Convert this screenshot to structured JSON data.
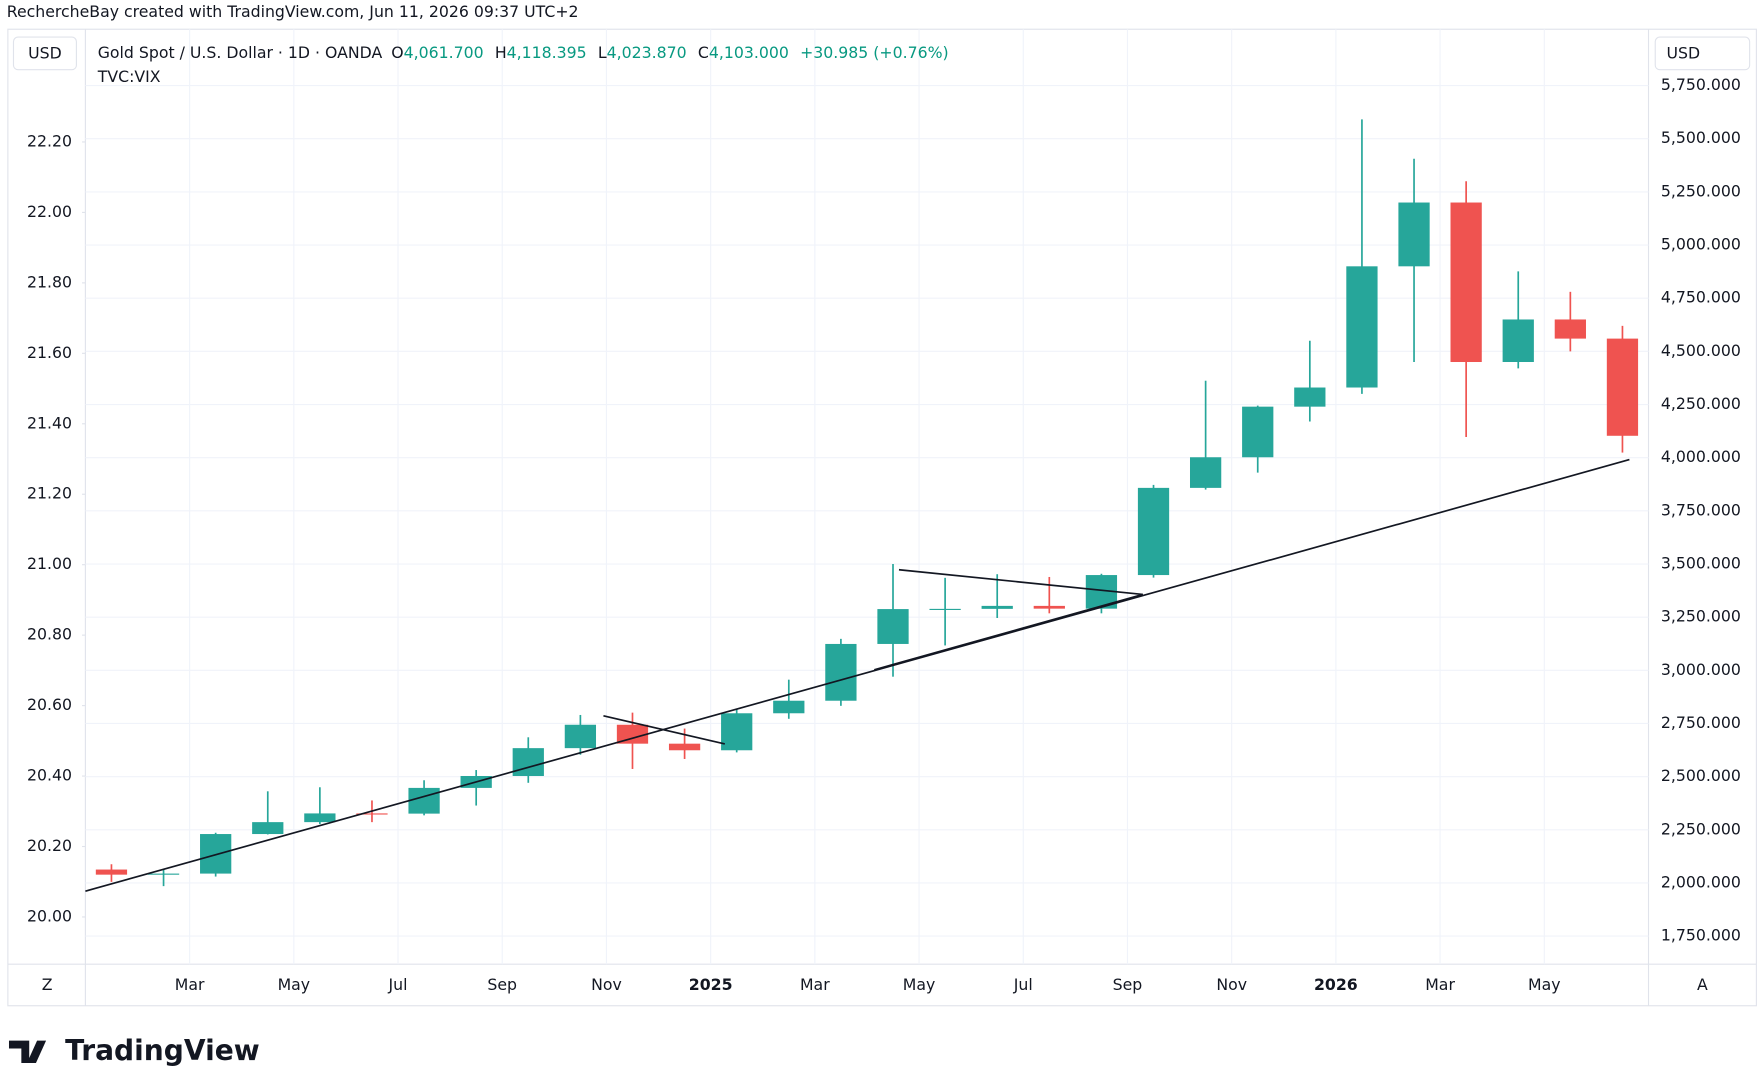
{
  "header": {
    "credit": "RechercheBay created with TradingView.com, Jun 11, 2026 09:37 UTC+2",
    "logo": "TradingView"
  },
  "chart_data": {
    "type": "candlestick",
    "title": "Gold Spot / U.S. Dollar · 1D · OANDA",
    "legend": {
      "open_key": "O",
      "open": "4,061.700",
      "high_key": "H",
      "high": "4,118.395",
      "low_key": "L",
      "low": "4,023.870",
      "close_key": "C",
      "close": "4,103.000",
      "change": "+30.985 (+0.76%)",
      "second_symbol": "TVC:VIX"
    },
    "y_axis_label": "USD",
    "y2_axis_label": "USD",
    "left_button": "Z",
    "right_button": "A",
    "up_color": "#26a69a",
    "down_color": "#ef5350",
    "grid": true,
    "x": [
      "2024-01",
      "2024-02",
      "2024-03",
      "2024-04",
      "2024-05",
      "2024-06",
      "2024-07",
      "2024-08",
      "2024-09",
      "2024-10",
      "2024-11",
      "2024-12",
      "2025-01",
      "2025-02",
      "2025-03",
      "2025-04",
      "2025-05",
      "2025-06",
      "2025-07",
      "2025-08",
      "2025-09",
      "2025-10",
      "2025-11",
      "2025-12",
      "2026-01",
      "2026-02",
      "2026-03",
      "2026-04",
      "2026-05",
      "2026-06"
    ],
    "open": [
      2063,
      2039,
      2044,
      2230,
      2286,
      2327,
      2326,
      2447,
      2503,
      2634,
      2744,
      2655,
      2624,
      2798,
      2857,
      3124,
      3288,
      3289,
      3303,
      3290,
      3448,
      3858,
      4002,
      4240,
      4330,
      4900,
      5200,
      4450,
      4650,
      4560
    ],
    "high": [
      2088,
      2065,
      2236,
      2431,
      2450,
      2388,
      2483,
      2531,
      2685,
      2790,
      2801,
      2726,
      2817,
      2956,
      3148,
      3500,
      3435,
      3452,
      3439,
      3454,
      3872,
      4362,
      4245,
      4550,
      5591,
      5406,
      5300,
      4876,
      4780,
      4620
    ],
    "low": [
      2005,
      1985,
      2030,
      2228,
      2277,
      2286,
      2318,
      2364,
      2471,
      2603,
      2536,
      2583,
      2614,
      2772,
      2833,
      2970,
      3117,
      3246,
      3268,
      3268,
      3436,
      3850,
      3930,
      4170,
      4300,
      4450,
      4097,
      4420,
      4500,
      4024
    ],
    "close": [
      2039,
      2044,
      2230,
      2286,
      2327,
      2326,
      2447,
      2503,
      2634,
      2744,
      2655,
      2624,
      2798,
      2857,
      3124,
      3288,
      3289,
      3303,
      3290,
      3448,
      3858,
      4002,
      4240,
      4330,
      4900,
      5200,
      4450,
      4650,
      4560,
      4103
    ],
    "xlim": [
      "2024-01",
      "2026-07"
    ],
    "xticks": [
      {
        "value": "2024-03",
        "label": "Mar"
      },
      {
        "value": "2024-05",
        "label": "May"
      },
      {
        "value": "2024-07",
        "label": "Jul"
      },
      {
        "value": "2024-09",
        "label": "Sep"
      },
      {
        "value": "2024-11",
        "label": "Nov"
      },
      {
        "value": "2025-01",
        "label": "2025"
      },
      {
        "value": "2025-03",
        "label": "Mar"
      },
      {
        "value": "2025-05",
        "label": "May"
      },
      {
        "value": "2025-07",
        "label": "Jul"
      },
      {
        "value": "2025-09",
        "label": "Sep"
      },
      {
        "value": "2025-11",
        "label": "Nov"
      },
      {
        "value": "2026-01",
        "label": "2026"
      },
      {
        "value": "2026-03",
        "label": "Mar"
      },
      {
        "value": "2026-05",
        "label": "May"
      }
    ],
    "ylim": [
      1618,
      6015
    ],
    "yticks": [
      {
        "value": 1750,
        "label": "1,750.000"
      },
      {
        "value": 2000,
        "label": "2,000.000"
      },
      {
        "value": 2250,
        "label": "2,250.000"
      },
      {
        "value": 2500,
        "label": "2,500.000"
      },
      {
        "value": 2750,
        "label": "2,750.000"
      },
      {
        "value": 3000,
        "label": "3,000.000"
      },
      {
        "value": 3250,
        "label": "3,250.000"
      },
      {
        "value": 3500,
        "label": "3,500.000"
      },
      {
        "value": 3750,
        "label": "3,750.000"
      },
      {
        "value": 4000,
        "label": "4,000.000"
      },
      {
        "value": 4250,
        "label": "4,250.000"
      },
      {
        "value": 4500,
        "label": "4,500.000"
      },
      {
        "value": 4750,
        "label": "4,750.000"
      },
      {
        "value": 5000,
        "label": "5,000.000"
      },
      {
        "value": 5250,
        "label": "5,250.000"
      },
      {
        "value": 5500,
        "label": "5,500.000"
      },
      {
        "value": 5750,
        "label": "5,750.000"
      }
    ],
    "y2lim": [
      19.866,
      22.52
    ],
    "y2ticks": [
      {
        "value": 20,
        "label": "20.00"
      },
      {
        "value": 20.2,
        "label": "20.20"
      },
      {
        "value": 20.4,
        "label": "20.40"
      },
      {
        "value": 20.6,
        "label": "20.60"
      },
      {
        "value": 20.8,
        "label": "20.80"
      },
      {
        "value": 21,
        "label": "21.00"
      },
      {
        "value": 21.2,
        "label": "21.20"
      },
      {
        "value": 21.4,
        "label": "21.40"
      },
      {
        "value": 21.6,
        "label": "21.60"
      },
      {
        "value": 21.8,
        "label": "21.80"
      },
      {
        "value": 22,
        "label": "22.00"
      },
      {
        "value": 22.2,
        "label": "22.20"
      }
    ]
  }
}
